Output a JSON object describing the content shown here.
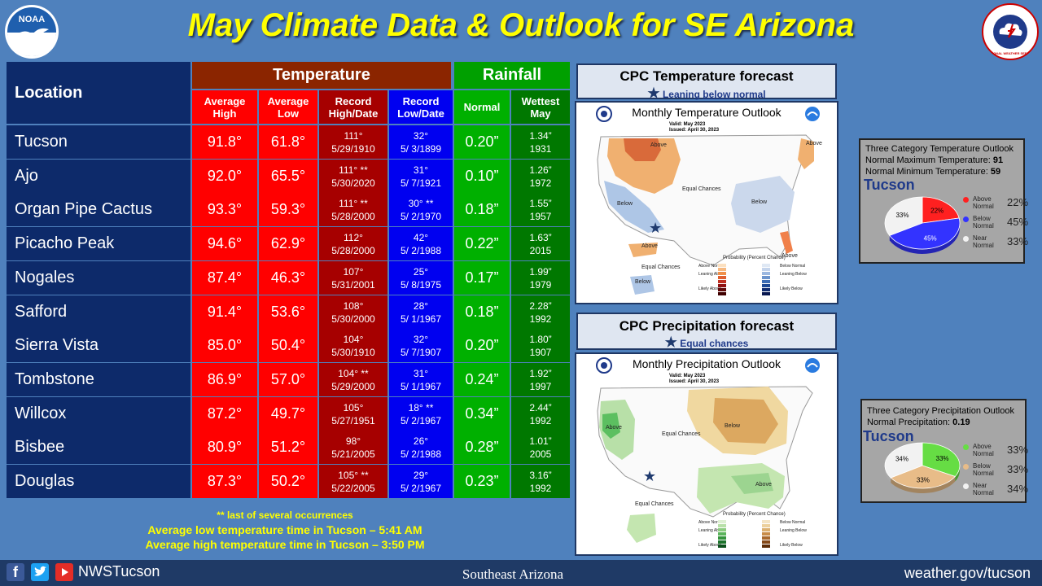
{
  "title": "May Climate Data & Outlook for SE Arizona",
  "logos": {
    "noaa": "NOAA",
    "nws": "NATIONAL WEATHER SERVICE"
  },
  "table": {
    "location_header": "Location",
    "temperature_header": "Temperature",
    "rainfall_header": "Rainfall",
    "subheaders": [
      "Average High",
      "Average Low",
      "Record High/Date",
      "Record Low/Date",
      "Normal",
      "Wettest May"
    ],
    "rows": [
      {
        "location": "Tucson",
        "avg_high": "91.8°",
        "avg_low": "61.8°",
        "rec_high": "111°",
        "rec_high_date": "5/29/1910",
        "rec_low": "32°",
        "rec_low_date": "5/ 3/1899",
        "normal": "0.20”",
        "wettest": "1.34”",
        "wettest_year": "1931"
      },
      {
        "location": "Ajo",
        "avg_high": "92.0°",
        "avg_low": "65.5°",
        "rec_high": "111° **",
        "rec_high_date": "5/30/2020",
        "rec_low": "31°",
        "rec_low_date": "5/ 7/1921",
        "normal": "0.10”",
        "wettest": "1.26”",
        "wettest_year": "1972"
      },
      {
        "location": "Organ Pipe Cactus",
        "avg_high": "93.3°",
        "avg_low": "59.3°",
        "rec_high": "111° **",
        "rec_high_date": "5/28/2000",
        "rec_low": "30° **",
        "rec_low_date": "5/ 2/1970",
        "normal": "0.18”",
        "wettest": "1.55”",
        "wettest_year": "1957"
      },
      {
        "location": "Picacho Peak",
        "avg_high": "94.6°",
        "avg_low": "62.9°",
        "rec_high": "112°",
        "rec_high_date": "5/28/2000",
        "rec_low": "42°",
        "rec_low_date": "5/ 2/1988",
        "normal": "0.22”",
        "wettest": "1.63”",
        "wettest_year": "2015"
      },
      {
        "location": "Nogales",
        "avg_high": "87.4°",
        "avg_low": "46.3°",
        "rec_high": "107°",
        "rec_high_date": "5/31/2001",
        "rec_low": "25°",
        "rec_low_date": "5/ 8/1975",
        "normal": "0.17”",
        "wettest": "1.99”",
        "wettest_year": "1979"
      },
      {
        "location": "Safford",
        "avg_high": "91.4°",
        "avg_low": "53.6°",
        "rec_high": "108°",
        "rec_high_date": "5/30/2000",
        "rec_low": "28°",
        "rec_low_date": "5/ 1/1967",
        "normal": "0.18”",
        "wettest": "2.28”",
        "wettest_year": "1992"
      },
      {
        "location": "Sierra Vista",
        "avg_high": "85.0°",
        "avg_low": "50.4°",
        "rec_high": "104°",
        "rec_high_date": "5/30/1910",
        "rec_low": "32°",
        "rec_low_date": "5/ 7/1907",
        "normal": "0.20”",
        "wettest": "1.80”",
        "wettest_year": "1907"
      },
      {
        "location": "Tombstone",
        "avg_high": "86.9°",
        "avg_low": "57.0°",
        "rec_high": "104° **",
        "rec_high_date": "5/29/2000",
        "rec_low": "31°",
        "rec_low_date": "5/ 1/1967",
        "normal": "0.24”",
        "wettest": "1.92”",
        "wettest_year": "1997"
      },
      {
        "location": "Willcox",
        "avg_high": "87.2°",
        "avg_low": "49.7°",
        "rec_high": "105°",
        "rec_high_date": "5/27/1951",
        "rec_low": "18° **",
        "rec_low_date": "5/ 2/1967",
        "normal": "0.34”",
        "wettest": "2.44”",
        "wettest_year": "1992"
      },
      {
        "location": "Bisbee",
        "avg_high": "80.9°",
        "avg_low": "51.2°",
        "rec_high": "98°",
        "rec_high_date": "5/21/2005",
        "rec_low": "26°",
        "rec_low_date": "5/ 2/1988",
        "normal": "0.28”",
        "wettest": "1.01”",
        "wettest_year": "2005"
      },
      {
        "location": "Douglas",
        "avg_high": "87.3°",
        "avg_low": "50.2°",
        "rec_high": "105° **",
        "rec_high_date": "5/22/2005",
        "rec_low": "29°",
        "rec_low_date": "5/ 2/1967",
        "normal": "0.23”",
        "wettest": "3.16”",
        "wettest_year": "1992"
      }
    ]
  },
  "notes": {
    "footnote": "** last of several occurrences",
    "low_time": "Average low temperature time in Tucson – 5:41 AM",
    "high_time": "Average high temperature time in Tucson – 3:50 PM"
  },
  "temp_forecast": {
    "title": "CPC Temperature forecast",
    "subtitle_pre": "Leaning ",
    "subtitle_em": "below",
    "subtitle_post": " normal",
    "map_title": "Monthly Temperature Outlook",
    "valid": "Valid:  May 2023",
    "issued": "Issued:  April 30, 2023",
    "labels": [
      "Above",
      "Above",
      "Below",
      "Equal Chances",
      "Below",
      "Above",
      "Above",
      "Equal Chances",
      "Below"
    ],
    "legend_title": "Probability (Percent Chance)",
    "legend_left": [
      "Above Normal",
      "Leaning Above",
      "Likely Above"
    ],
    "legend_right": [
      "Below Normal",
      "Leaning Below",
      "Likely Below"
    ]
  },
  "precip_forecast": {
    "title": "CPC Precipitation forecast",
    "subtitle": "Equal chances",
    "map_title": "Monthly Precipitation Outlook",
    "valid": "Valid:  May 2023",
    "issued": "Issued:  April 30, 2023",
    "labels": [
      "Above",
      "Equal Chances",
      "Below",
      "Above",
      "Equal Chances"
    ],
    "legend_title": "Probability (Percent Chance)",
    "legend_left": [
      "Above Normal",
      "Leaning Above",
      "Likely Above"
    ],
    "legend_right": [
      "Below Normal",
      "Leaning Below",
      "Likely Below"
    ]
  },
  "temp_outlook": {
    "title": "Three Category Temperature Outlook",
    "max_label": "Normal Maximum Temperature:",
    "max_value": "91",
    "min_label": "Normal Minimum Temperature:",
    "min_value": "59",
    "city": "Tucson",
    "chart_data": {
      "type": "pie",
      "categories": [
        "Above Normal",
        "Below Normal",
        "Near Normal"
      ],
      "values": [
        22,
        45,
        33
      ],
      "labels": [
        "22%",
        "45%",
        "33%"
      ],
      "colors": [
        "#ff2020",
        "#3333ff",
        "#f2f2f2"
      ]
    }
  },
  "precip_outlook": {
    "title": "Three Category Precipitation Outlook",
    "normal_label": "Normal Precipitation:",
    "normal_value": "0.19",
    "city": "Tucson",
    "chart_data": {
      "type": "pie",
      "categories": [
        "Above Normal",
        "Below Normal",
        "Near Normal"
      ],
      "values": [
        33,
        33,
        34
      ],
      "labels": [
        "33%",
        "33%",
        "34%"
      ],
      "colors": [
        "#66dd44",
        "#e8bc88",
        "#f2f2f2"
      ]
    }
  },
  "footer": {
    "handle": "NWSTucson",
    "region": "Southeast Arizona",
    "url": "weather.gov/tucson"
  }
}
